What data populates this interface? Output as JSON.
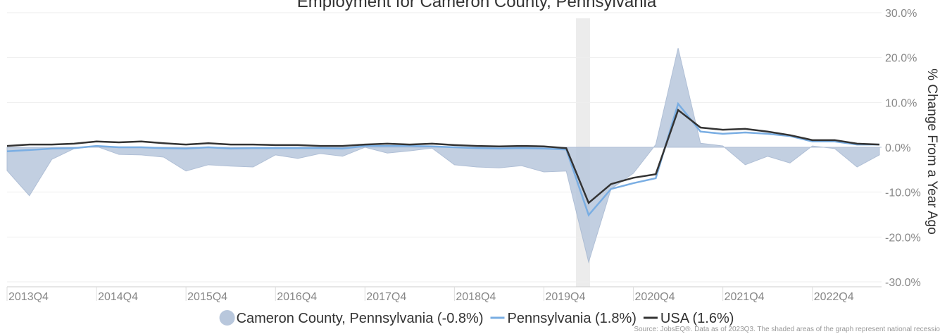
{
  "chart_data": {
    "type": "line",
    "title": "Employment for Cameron County, Pennsylvania",
    "y_axis_label": "% Change From a Year Ago",
    "source": "Source: JobsEQ®. Data as of 2023Q3. The shaded areas of the graph represent national recessio",
    "categories": [
      "2013Q4",
      null,
      null,
      null,
      "2014Q4",
      null,
      null,
      null,
      "2015Q4",
      null,
      null,
      null,
      "2016Q4",
      null,
      null,
      null,
      "2017Q4",
      null,
      null,
      null,
      "2018Q4",
      null,
      null,
      null,
      "2019Q4",
      null,
      null,
      null,
      "2020Q4",
      null,
      null,
      null,
      "2021Q4",
      null,
      null,
      null,
      "2022Q4",
      null,
      null,
      null
    ],
    "series": [
      {
        "name": "Cameron County, Pennsylvania (-0.8%)",
        "color": "#b8c7dc",
        "style": "area",
        "values": [
          -5.2,
          -10.8,
          -2.7,
          -0.3,
          0.2,
          -1.6,
          -1.7,
          -2.2,
          -5.3,
          -3.9,
          -4.2,
          -4.4,
          -1.7,
          -2.5,
          -1.4,
          -2.0,
          0,
          -1.3,
          -0.8,
          -0.2,
          -3.9,
          -4.4,
          -4.6,
          -4.1,
          -5.5,
          -5.3,
          -25.6,
          -9.3,
          -5.8,
          0.6,
          22.1,
          0.9,
          0.3,
          -3.9,
          -2.0,
          -3.5,
          0.3,
          -0.3,
          -4.4,
          -1.7
        ]
      },
      {
        "name": "Pennsylvania (1.8%)",
        "color": "#7aaee3",
        "style": "line",
        "values": [
          -0.9,
          -0.6,
          -0.3,
          -0.2,
          0.3,
          0,
          0,
          -0.2,
          -0.3,
          0,
          -0.3,
          -0.2,
          -0.2,
          -0.2,
          -0.2,
          -0.3,
          0.3,
          0.3,
          0.3,
          0.2,
          0,
          -0.2,
          -0.3,
          -0.2,
          -0.3,
          -0.5,
          -15.1,
          -9.3,
          -8.0,
          -6.9,
          9.7,
          3.5,
          3.0,
          3.3,
          3.0,
          2.5,
          1.3,
          1.3,
          0.6,
          0.6
        ]
      },
      {
        "name": "USA (1.6%)",
        "color": "#333333",
        "style": "line",
        "values": [
          0.3,
          0.6,
          0.6,
          0.8,
          1.3,
          1.1,
          1.3,
          0.9,
          0.6,
          0.9,
          0.6,
          0.6,
          0.5,
          0.5,
          0.3,
          0.3,
          0.6,
          0.8,
          0.6,
          0.8,
          0.5,
          0.3,
          0.2,
          0.3,
          0.2,
          -0.2,
          -12.4,
          -8.2,
          -6.8,
          -6.0,
          8.3,
          4.4,
          3.9,
          4.1,
          3.5,
          2.7,
          1.6,
          1.6,
          0.8,
          0.6
        ]
      }
    ],
    "ylim": [
      -30,
      30
    ],
    "yticks": [
      {
        "value": -30,
        "label": "-30.0%"
      },
      {
        "value": -20,
        "label": "-20.0%"
      },
      {
        "value": -10,
        "label": "-10.0%"
      },
      {
        "value": 0,
        "label": "0.0%"
      },
      {
        "value": 10,
        "label": "10.0%"
      },
      {
        "value": 20,
        "label": "20.0%"
      },
      {
        "value": 30,
        "label": "30.0%"
      }
    ],
    "grid": true
  }
}
